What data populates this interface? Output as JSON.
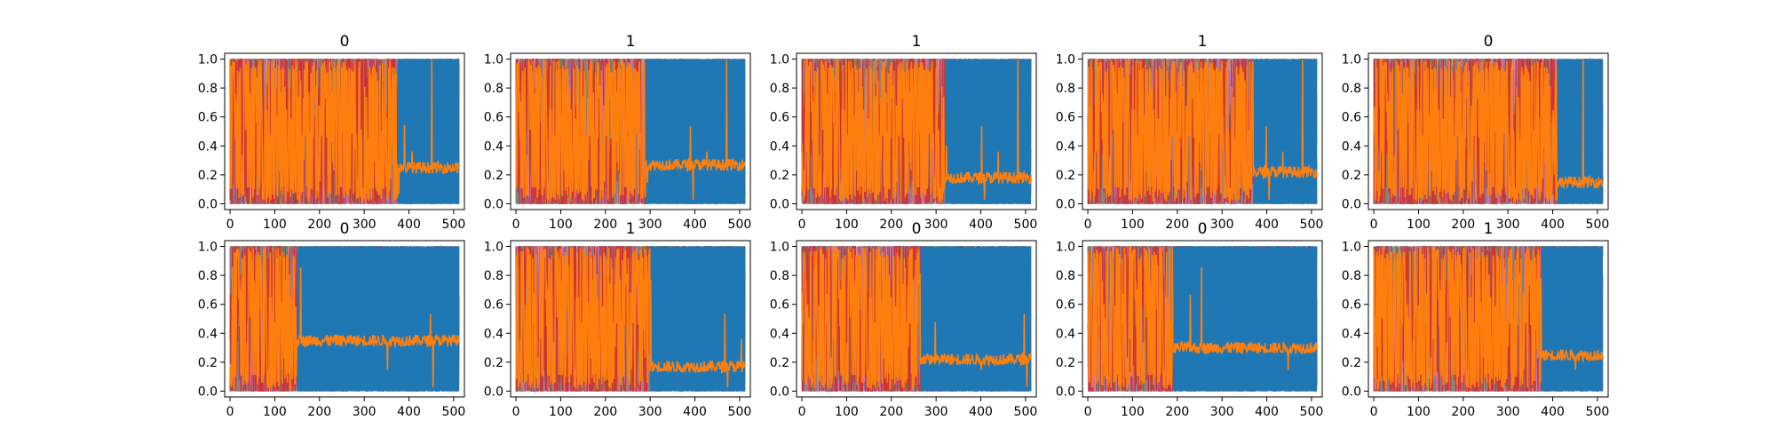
{
  "chart_data": {
    "type": "line",
    "layout": "2x5 grid of subplots",
    "grid": false,
    "legend": "none",
    "x_ticks": [
      0,
      100,
      200,
      300,
      400,
      500
    ],
    "y_ticks": [
      "0.0",
      "0.2",
      "0.4",
      "0.6",
      "0.8",
      "1.0"
    ],
    "xlim": [
      -12,
      524
    ],
    "ylim": [
      -0.04,
      1.04
    ],
    "colors": {
      "dense_series": [
        "#1f77b4",
        "#17becf",
        "#2ca02c",
        "#bcbd22",
        "#9467bd",
        "#8c564b",
        "#e377c2",
        "#7f7f7f",
        "#d62728"
      ],
      "main_series": "#ff7f0e",
      "base_series": "#1f77b4"
    },
    "subplots": [
      {
        "title": "0",
        "transition_x": 375,
        "post_level": 0.25
      },
      {
        "title": "1",
        "transition_x": 290,
        "post_level": 0.27
      },
      {
        "title": "1",
        "transition_x": 320,
        "post_level": 0.18
      },
      {
        "title": "1",
        "transition_x": 370,
        "post_level": 0.22
      },
      {
        "title": "0",
        "transition_x": 410,
        "post_level": 0.15
      },
      {
        "title": "0",
        "transition_x": 150,
        "post_level": 0.35
      },
      {
        "title": "1",
        "transition_x": 300,
        "post_level": 0.17
      },
      {
        "title": "0",
        "transition_x": 265,
        "post_level": 0.22
      },
      {
        "title": "0",
        "transition_x": 190,
        "post_level": 0.3
      },
      {
        "title": "1",
        "transition_x": 375,
        "post_level": 0.25
      }
    ]
  }
}
